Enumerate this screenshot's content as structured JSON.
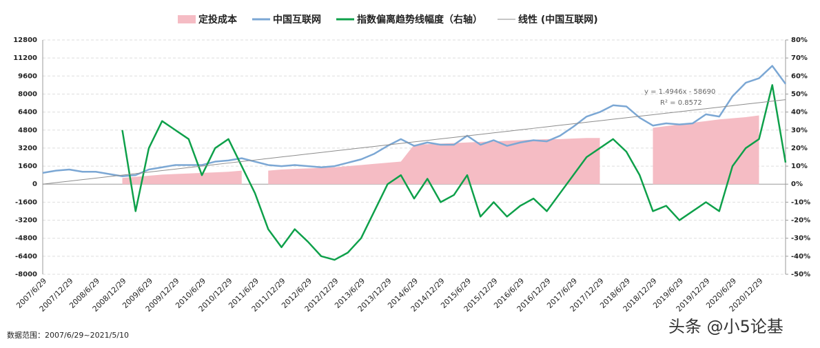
{
  "chart_data": {
    "type": "combo",
    "legend_position": "top",
    "categories": [
      "2007/6/29",
      null,
      "2007/12/29",
      null,
      "2008/6/29",
      null,
      "2008/12/29",
      null,
      "2009/6/29",
      null,
      "2009/12/29",
      null,
      "2010/6/29",
      null,
      "2010/12/29",
      null,
      "2011/6/29",
      null,
      "2011/12/29",
      null,
      "2012/6/29",
      null,
      "2012/12/29",
      null,
      "2013/6/29",
      null,
      "2013/12/29",
      null,
      "2014/6/29",
      null,
      "2014/12/29",
      null,
      "2015/6/29",
      null,
      "2015/12/29",
      null,
      "2016/6/29",
      null,
      "2016/12/29",
      null,
      "2017/6/29",
      null,
      "2017/12/29",
      null,
      "2018/6/29",
      null,
      "2018/12/29",
      null,
      "2019/6/29",
      null,
      "2019/12/29",
      null,
      "2020/6/29",
      null,
      "2020/12/29",
      null,
      null
    ],
    "series": [
      {
        "name": "定投成本",
        "kind": "area",
        "color": "#f5bcc4",
        "axis": "y",
        "values": [
          null,
          null,
          null,
          null,
          null,
          null,
          550,
          650,
          750,
          850,
          900,
          950,
          1000,
          1050,
          1100,
          1200,
          null,
          1200,
          1300,
          1350,
          1400,
          1450,
          1500,
          1600,
          1700,
          1800,
          1900,
          2000,
          3500,
          3550,
          3600,
          3650,
          3700,
          3750,
          3800,
          3850,
          3900,
          3950,
          4000,
          4000,
          4050,
          4100,
          4100,
          null,
          null,
          null,
          5000,
          5150,
          5300,
          5450,
          5600,
          5750,
          5850,
          5950,
          6100,
          null,
          null
        ]
      },
      {
        "name": "中国互联网",
        "kind": "line",
        "color": "#7ba7d4",
        "axis": "y",
        "values": [
          1000,
          1200,
          1300,
          1100,
          1100,
          900,
          700,
          800,
          1300,
          1500,
          1700,
          1700,
          1700,
          2000,
          2100,
          2300,
          2000,
          1700,
          1600,
          1700,
          1600,
          1500,
          1600,
          1900,
          2200,
          2700,
          3400,
          4000,
          3400,
          3700,
          3500,
          3500,
          4300,
          3500,
          3900,
          3400,
          3700,
          3900,
          3800,
          4300,
          5100,
          6000,
          6400,
          7000,
          6900,
          5900,
          5200,
          5400,
          5300,
          5400,
          6200,
          6000,
          7800,
          9000,
          9400,
          10500,
          8900
        ]
      },
      {
        "name": "指数偏离趋势线幅度（右轴）",
        "kind": "line",
        "color": "#0ea04a",
        "axis": "y2",
        "values": [
          null,
          null,
          null,
          null,
          null,
          null,
          30,
          -15,
          20,
          35,
          30,
          25,
          5,
          20,
          25,
          10,
          -5,
          -25,
          -35,
          -25,
          -32,
          -40,
          -42,
          -38,
          -30,
          -15,
          0,
          5,
          -8,
          3,
          -10,
          -6,
          5,
          -18,
          -10,
          -18,
          -12,
          -8,
          -15,
          -5,
          5,
          15,
          20,
          25,
          18,
          5,
          -15,
          -12,
          -20,
          -15,
          -10,
          -15,
          10,
          20,
          25,
          55,
          12
        ]
      },
      {
        "name": "线性 (中国互联网)",
        "kind": "trend",
        "color": "#8c8c8c",
        "axis": "y",
        "values": [
          0,
          134,
          268,
          402,
          536,
          670,
          804,
          938,
          1072,
          1206,
          1340,
          1474,
          1608,
          1742,
          1876,
          2010,
          2144,
          2278,
          2412,
          2546,
          2680,
          2814,
          2948,
          3082,
          3216,
          3350,
          3484,
          3618,
          3752,
          3886,
          4020,
          4154,
          4288,
          4422,
          4556,
          4690,
          4824,
          4958,
          5092,
          5226,
          5360,
          5494,
          5628,
          5762,
          5896,
          6030,
          6164,
          6298,
          6432,
          6566,
          6700,
          6834,
          6968,
          7102,
          7236,
          7370,
          7504
        ]
      }
    ],
    "ylim": [
      -8000,
      12800
    ],
    "yticks": [
      12800,
      11200,
      9600,
      8000,
      6400,
      4800,
      3200,
      1600,
      0,
      -1600,
      -3200,
      -4800,
      -6400,
      -8000
    ],
    "y2lim": [
      -50,
      80
    ],
    "y2ticks": [
      {
        "value": 80,
        "label": "80%"
      },
      {
        "value": 70,
        "label": "70%"
      },
      {
        "value": 60,
        "label": "60%"
      },
      {
        "value": 50,
        "label": "50%"
      },
      {
        "value": 40,
        "label": "40%"
      },
      {
        "value": 30,
        "label": "30%"
      },
      {
        "value": 20,
        "label": "20%"
      },
      {
        "value": 10,
        "label": "10%"
      },
      {
        "value": 0,
        "label": "0%"
      },
      {
        "value": -10,
        "label": "-10%"
      },
      {
        "value": -20,
        "label": "-20%"
      },
      {
        "value": -30,
        "label": "-30%"
      },
      {
        "value": -40,
        "label": "-40%"
      },
      {
        "value": -50,
        "label": "-50%"
      }
    ],
    "grid": true,
    "annotations": [
      "y = 1.4946x - 58690",
      "R² = 0.8572"
    ],
    "footnote": "数据范围：2007/6/29~2021/5/10",
    "watermark": "头条 @小5论基"
  }
}
